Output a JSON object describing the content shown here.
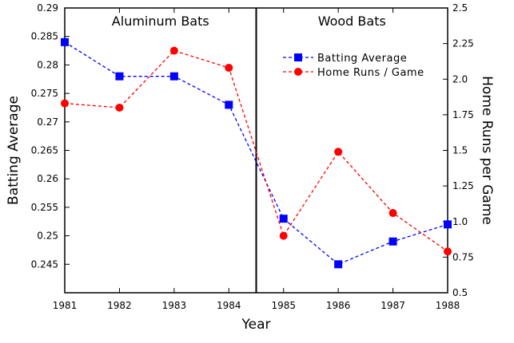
{
  "chart_data": {
    "type": "line",
    "x": [
      1981,
      1982,
      1983,
      1984,
      1985,
      1986,
      1987,
      1988
    ],
    "x_ticks": [
      "1981",
      "1982",
      "1983",
      "1984",
      "1985",
      "1986",
      "1987",
      "1988"
    ],
    "xlabel": "Year",
    "ylabel_left": "Batting Average",
    "ylabel_right": "Home Runs per Game",
    "ylim_left": [
      0.24,
      0.29
    ],
    "ylim_right": [
      0.5,
      2.5
    ],
    "yticks_left": [
      "0.245",
      "0.25",
      "0.255",
      "0.26",
      "0.265",
      "0.27",
      "0.275",
      "0.28",
      "0.285",
      "0.29"
    ],
    "yticks_right": [
      "0.5",
      "0.75",
      "1.0",
      "1.25",
      "1.5",
      "1.75",
      "2.0",
      "2.25",
      "2.5"
    ],
    "divider_x": 1984.5,
    "sections": {
      "left": "Aluminum Bats",
      "right": "Wood Bats"
    },
    "grid": false,
    "legend_placement": "top-right",
    "series": [
      {
        "name": "Batting Average",
        "axis": "left",
        "color": "#0000ff",
        "marker": "square",
        "line": "dashed",
        "values": [
          0.284,
          0.278,
          0.278,
          0.273,
          0.253,
          0.245,
          0.249,
          0.252
        ]
      },
      {
        "name": "Home Runs / Game",
        "axis": "right",
        "color": "#ff0000",
        "marker": "circle",
        "line": "dashed",
        "values": [
          1.83,
          1.8,
          2.2,
          2.08,
          0.9,
          1.49,
          1.06,
          0.79
        ]
      }
    ]
  }
}
